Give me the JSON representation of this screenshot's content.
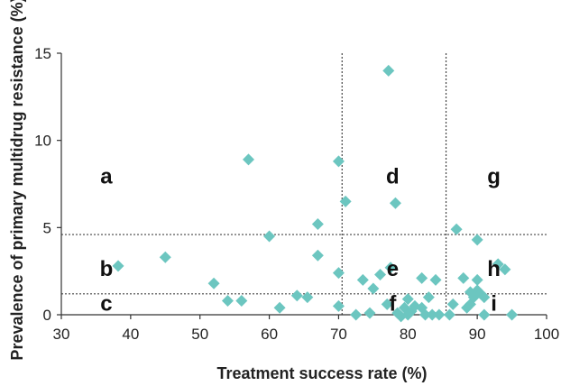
{
  "chart_data": {
    "type": "scatter",
    "xlabel": "Treatment success rate (%)",
    "ylabel": "Prevalence of primary multidrug resistance (%)",
    "xlim": [
      30,
      100
    ],
    "ylim": [
      0,
      15
    ],
    "xticks": [
      30,
      40,
      50,
      60,
      70,
      80,
      90,
      100
    ],
    "yticks": [
      0,
      5,
      10,
      15
    ],
    "grid": false,
    "marker": "diamond",
    "marker_color": "#6cc6c0",
    "thresholds": {
      "x": [
        70.5,
        85.5
      ],
      "y": [
        1.2,
        4.6
      ]
    },
    "region_labels": [
      "a",
      "b",
      "c",
      "d",
      "e",
      "f",
      "g",
      "h",
      "i"
    ],
    "points": [
      [
        38.2,
        2.8
      ],
      [
        45,
        3.3
      ],
      [
        52,
        1.8
      ],
      [
        54,
        0.8
      ],
      [
        56,
        0.8
      ],
      [
        57,
        8.9
      ],
      [
        60,
        4.5
      ],
      [
        61.5,
        0.4
      ],
      [
        64,
        1.1
      ],
      [
        65.5,
        1.0
      ],
      [
        67,
        5.2
      ],
      [
        67,
        3.4
      ],
      [
        70,
        8.8
      ],
      [
        70,
        2.4
      ],
      [
        70,
        0.5
      ],
      [
        71,
        6.5
      ],
      [
        72.5,
        0.0
      ],
      [
        73.5,
        2.0
      ],
      [
        74.5,
        0.1
      ],
      [
        75,
        1.5
      ],
      [
        76,
        2.3
      ],
      [
        77,
        0.6
      ],
      [
        77.5,
        2.7
      ],
      [
        77.2,
        14.0
      ],
      [
        78.2,
        6.4
      ],
      [
        78.5,
        0.1
      ],
      [
        79,
        -0.1
      ],
      [
        79.5,
        0.4
      ],
      [
        80,
        0.9
      ],
      [
        80,
        0.0
      ],
      [
        80.5,
        0.2
      ],
      [
        81,
        0.5
      ],
      [
        82,
        2.1
      ],
      [
        82,
        0.4
      ],
      [
        82.5,
        0.0
      ],
      [
        83,
        1.0
      ],
      [
        83.5,
        0.0
      ],
      [
        84,
        2.0
      ],
      [
        84.5,
        0.0
      ],
      [
        86,
        0.0
      ],
      [
        86.5,
        0.6
      ],
      [
        87,
        4.9
      ],
      [
        88,
        2.1
      ],
      [
        88.5,
        0.4
      ],
      [
        89,
        0.6
      ],
      [
        89,
        1.3
      ],
      [
        89.5,
        1.0
      ],
      [
        90,
        4.3
      ],
      [
        90,
        2.0
      ],
      [
        90,
        1.4
      ],
      [
        90.5,
        1.2
      ],
      [
        91,
        1.0
      ],
      [
        91,
        0.0
      ],
      [
        93,
        2.9
      ],
      [
        94,
        2.6
      ],
      [
        95,
        0.0
      ]
    ]
  }
}
